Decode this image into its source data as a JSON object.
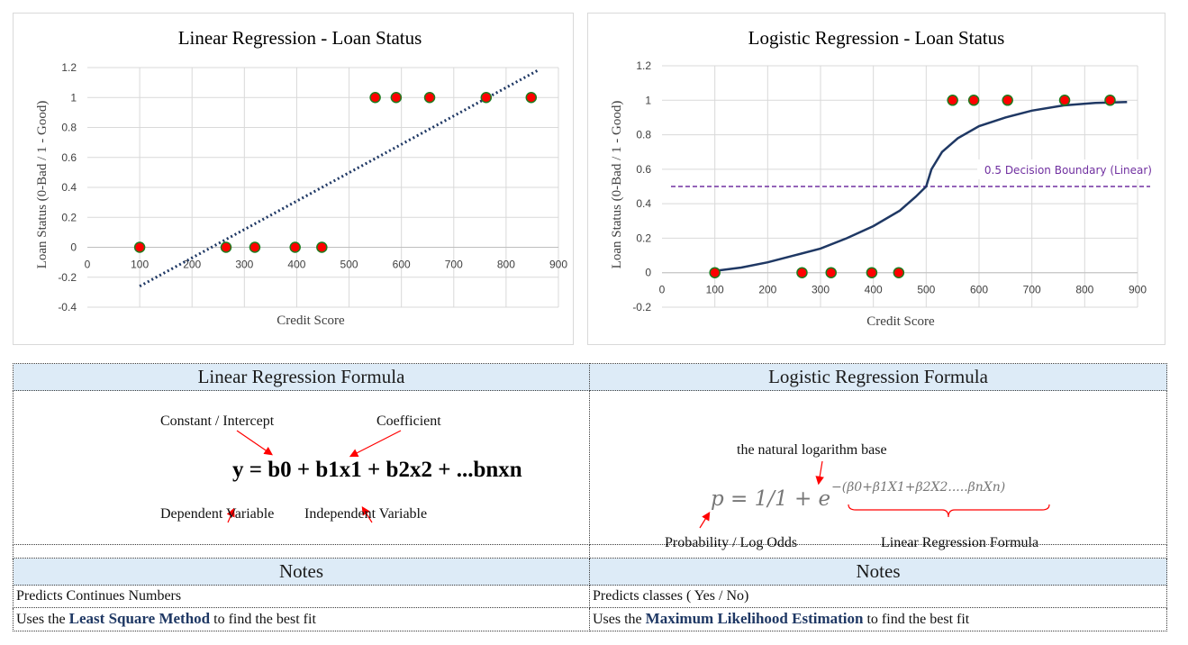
{
  "chart_data": [
    {
      "type": "scatter",
      "title": "Linear Regression - Loan Status",
      "xlabel": "Credit Score",
      "ylabel": "Loan Status (0-Bad / 1 - Good)",
      "xlim": [
        0,
        900
      ],
      "ylim": [
        -0.4,
        1.2
      ],
      "xticks": [
        0,
        100,
        200,
        300,
        400,
        500,
        600,
        700,
        800,
        900
      ],
      "yticks": [
        -0.4,
        -0.2,
        0,
        0.2,
        0.4,
        0.6,
        0.8,
        1,
        1.2
      ],
      "grid": true,
      "points": [
        {
          "x": 100,
          "y": 0
        },
        {
          "x": 265,
          "y": 0
        },
        {
          "x": 320,
          "y": 0
        },
        {
          "x": 397,
          "y": 0
        },
        {
          "x": 448,
          "y": 0
        },
        {
          "x": 550,
          "y": 1
        },
        {
          "x": 590,
          "y": 1
        },
        {
          "x": 654,
          "y": 1
        },
        {
          "x": 762,
          "y": 1
        },
        {
          "x": 848,
          "y": 1
        }
      ],
      "point_color": "#ff0000",
      "point_edge": "#1e7b1e",
      "trendline": {
        "style": "dotted",
        "color": "#1f3864",
        "from": {
          "x": 100,
          "y": -0.26
        },
        "to": {
          "x": 860,
          "y": 1.18
        }
      }
    },
    {
      "type": "scatter",
      "title": "Logistic Regression - Loan Status",
      "xlabel": "Credit Score",
      "ylabel": "Loan Status (0-Bad / 1 - Good)",
      "xlim": [
        0,
        900
      ],
      "ylim": [
        -0.2,
        1.2
      ],
      "xticks": [
        0,
        100,
        200,
        300,
        400,
        500,
        600,
        700,
        800,
        900
      ],
      "yticks": [
        -0.2,
        0,
        0.2,
        0.4,
        0.6,
        0.8,
        1,
        1.2
      ],
      "grid": true,
      "points": [
        {
          "x": 100,
          "y": 0
        },
        {
          "x": 265,
          "y": 0
        },
        {
          "x": 320,
          "y": 0
        },
        {
          "x": 397,
          "y": 0
        },
        {
          "x": 448,
          "y": 0
        },
        {
          "x": 550,
          "y": 1
        },
        {
          "x": 590,
          "y": 1
        },
        {
          "x": 654,
          "y": 1
        },
        {
          "x": 762,
          "y": 1
        },
        {
          "x": 848,
          "y": 1
        }
      ],
      "point_color": "#ff0000",
      "point_edge": "#1e7b1e",
      "curve": {
        "color": "#1f3864",
        "points": [
          [
            100,
            0.01
          ],
          [
            150,
            0.03
          ],
          [
            200,
            0.06
          ],
          [
            250,
            0.1
          ],
          [
            300,
            0.14
          ],
          [
            350,
            0.2
          ],
          [
            400,
            0.27
          ],
          [
            450,
            0.36
          ],
          [
            480,
            0.44
          ],
          [
            500,
            0.5
          ],
          [
            510,
            0.6
          ],
          [
            530,
            0.7
          ],
          [
            560,
            0.78
          ],
          [
            600,
            0.85
          ],
          [
            650,
            0.9
          ],
          [
            700,
            0.94
          ],
          [
            760,
            0.97
          ],
          [
            820,
            0.985
          ],
          [
            880,
            0.99
          ]
        ]
      },
      "boundary": {
        "y": 0.5,
        "label": "0.5 Decision Boundary (Linear)",
        "color": "#7030a0",
        "style": "dashed"
      }
    }
  ],
  "formula": {
    "linear": {
      "header": "Linear Regression Formula",
      "equation": "y = b0 + b1x1 + b2x2 + ...bnxn",
      "labels": {
        "intercept": "Constant / Intercept",
        "coefficient": "Coefficient",
        "dependent": "Dependent Variable",
        "independent": "Independent Variable"
      }
    },
    "logistic": {
      "header": "Logistic Regression Formula",
      "equation_main": "p = 1/1 + e",
      "equation_exp": "−(β0+β1X1+β2X2.....βnXn)",
      "labels": {
        "log_base": "the natural logarithm base",
        "probability": "Probability / Log Odds",
        "linear_formula": "Linear Regression Formula"
      }
    }
  },
  "notes": {
    "linear": {
      "header": "Notes",
      "line1": "Predicts Continues Numbers",
      "line2_pre": "Uses the ",
      "line2_bold": "Least Square Method",
      "line2_post": " to find the best fit"
    },
    "logistic": {
      "header": "Notes",
      "line1": "Predicts classes ( Yes / No)",
      "line2_pre": "Uses the ",
      "line2_bold": "Maximum Likelihood Estimation",
      "line2_post": " to find the best fit"
    }
  }
}
